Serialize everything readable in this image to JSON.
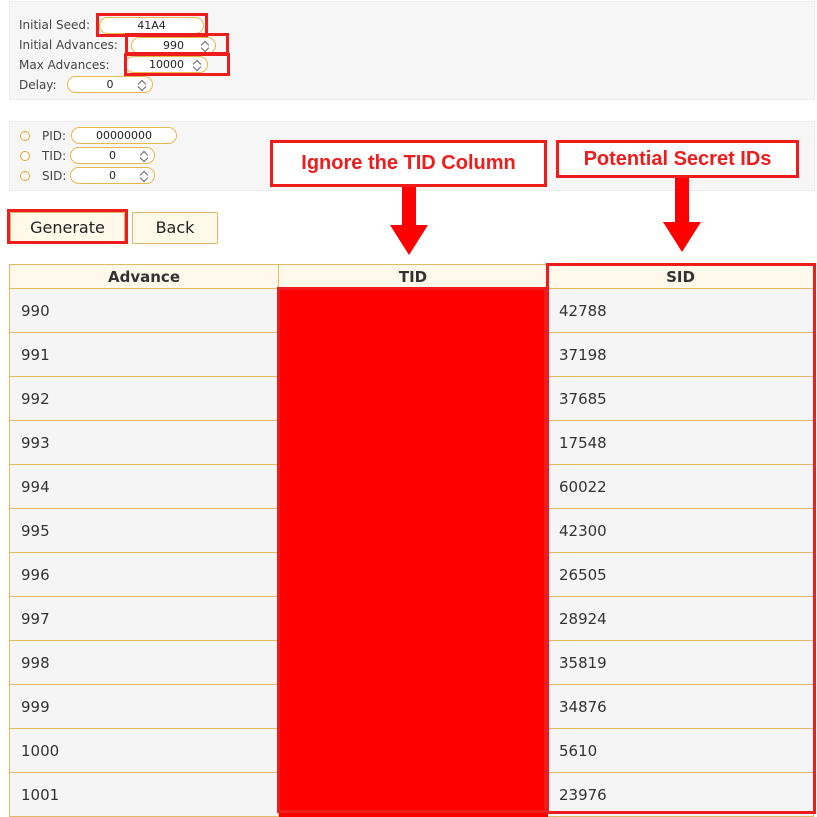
{
  "seed_form": {
    "initial_seed": {
      "label": "Initial Seed:",
      "value": "41A4"
    },
    "initial_advances": {
      "label": "Initial Advances:",
      "value": "990"
    },
    "max_advances": {
      "label": "Max Advances:",
      "value": "10000"
    },
    "delay": {
      "label": "Delay:",
      "value": "0"
    }
  },
  "filter_form": {
    "pid": {
      "label": "PID:",
      "value": "00000000"
    },
    "tid": {
      "label": "TID:",
      "value": "0"
    },
    "sid": {
      "label": "SID:",
      "value": "0"
    }
  },
  "buttons": {
    "generate": "Generate",
    "back": "Back"
  },
  "table": {
    "columns": [
      "Advance",
      "TID",
      "SID"
    ],
    "rows": [
      {
        "advance": "990",
        "sid": "42788"
      },
      {
        "advance": "991",
        "sid": "37198"
      },
      {
        "advance": "992",
        "sid": "37685"
      },
      {
        "advance": "993",
        "sid": "17548"
      },
      {
        "advance": "994",
        "sid": "60022"
      },
      {
        "advance": "995",
        "sid": "42300"
      },
      {
        "advance": "996",
        "sid": "26505"
      },
      {
        "advance": "997",
        "sid": "28924"
      },
      {
        "advance": "998",
        "sid": "35819"
      },
      {
        "advance": "999",
        "sid": "34876"
      },
      {
        "advance": "1000",
        "sid": "5610"
      },
      {
        "advance": "1001",
        "sid": "23976"
      }
    ]
  },
  "annotations": {
    "ignore_tid": "Ignore the TID Column",
    "secret_ids": "Potential Secret IDs",
    "color": "#ee1c1c"
  }
}
